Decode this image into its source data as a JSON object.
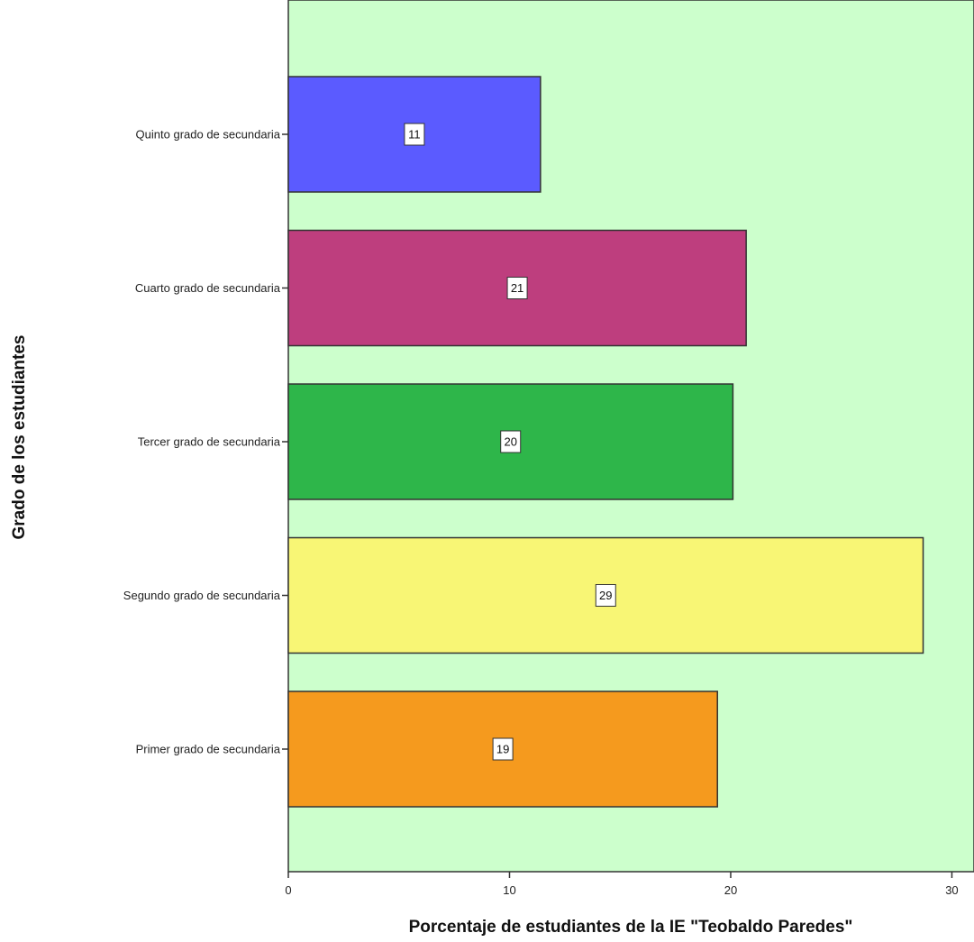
{
  "chart_data": {
    "type": "bar",
    "orientation": "horizontal",
    "categories": [
      "Quinto grado de secundaria",
      "Cuarto grado de secundaria",
      "Tercer grado de secundaria",
      "Segundo grado de secundaria",
      "Primer grado de secundaria"
    ],
    "values": [
      11.4,
      20.7,
      20.1,
      28.7,
      19.4
    ],
    "data_labels": [
      "11",
      "21",
      "20",
      "29",
      "19"
    ],
    "colors": [
      "#5b5bff",
      "#be3e7e",
      "#2eb64a",
      "#f8f675",
      "#f59a1e"
    ],
    "background_color": "#ccffcc",
    "xlabel": "Porcentaje de estudiantes de la IE \"Teobaldo Paredes\"",
    "ylabel": "Grado de los estudiantes",
    "xlim": [
      0,
      31
    ],
    "xticks": [
      0,
      10,
      20,
      30
    ],
    "grid": false,
    "legend": "none"
  }
}
